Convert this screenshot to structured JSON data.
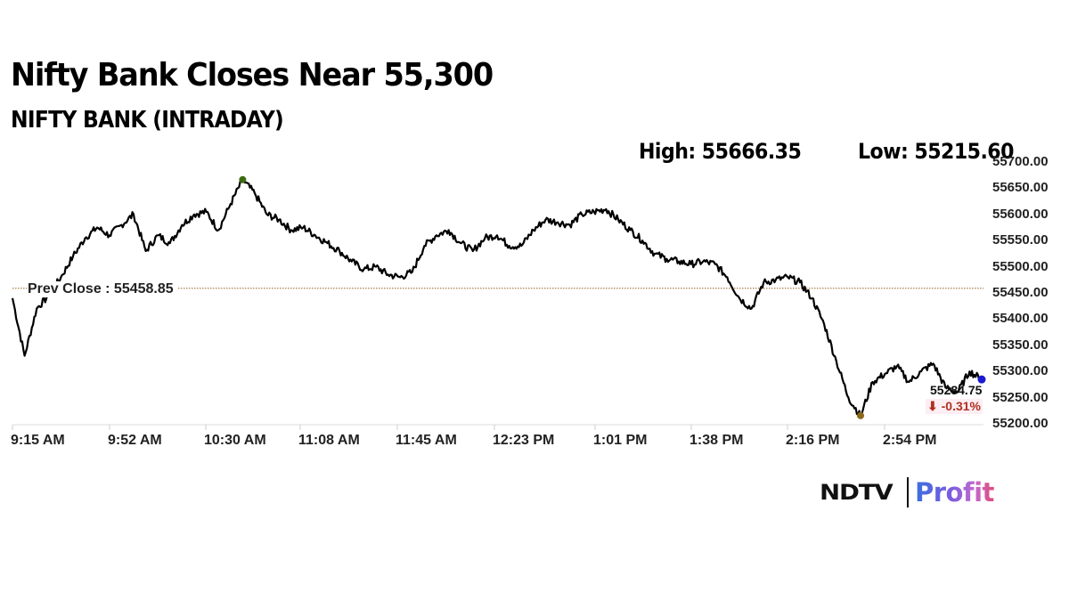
{
  "headline": "Nifty Bank Closes Near 55,300",
  "subtitle": "NIFTY BANK (INTRADAY)",
  "stats": {
    "high_label": "High: 55666.35",
    "low_label": "Low: 55215.60"
  },
  "prev_close_label": "Prev Close : 55458.85",
  "last_price": "55284.75",
  "change": "⬇ -0.31%",
  "logo": {
    "left": "NDTV",
    "right": "Profit"
  },
  "colors": {
    "line": "#000000",
    "prev_close_line": "#b8946a",
    "high_marker": "#3d6b12",
    "low_marker": "#8a6a1a",
    "last_marker": "#1a1ad0",
    "change_negative": "#b03020"
  },
  "chart_data": {
    "type": "line",
    "title": "NIFTY BANK (INTRADAY)",
    "xlabel": "",
    "ylabel": "",
    "x_ticks": [
      "9:15 AM",
      "9:52 AM",
      "10:30 AM",
      "11:08 AM",
      "11:45 AM",
      "12:23 PM",
      "1:01 PM",
      "1:38 PM",
      "2:16 PM",
      "2:54 PM"
    ],
    "y_ticks": [
      "55700.00",
      "55650.00",
      "55600.00",
      "55550.00",
      "55500.00",
      "55450.00",
      "55400.00",
      "55350.00",
      "55300.00",
      "55250.00",
      "55200.00"
    ],
    "ylim": [
      55200,
      55700
    ],
    "grid": false,
    "legend": null,
    "annotations": {
      "high": 55666.35,
      "low": 55215.6,
      "prev_close": 55458.85,
      "last": 55284.75,
      "change_pct": -0.31
    },
    "series": [
      {
        "name": "NIFTY BANK",
        "x": [
          "9:15 AM",
          "9:17 AM",
          "9:19 AM",
          "9:21 AM",
          "9:23 AM",
          "9:25 AM",
          "9:30 AM",
          "9:35 AM",
          "9:40 AM",
          "9:45 AM",
          "9:50 AM",
          "9:52 AM",
          "9:55 AM",
          "10:00 AM",
          "10:05 AM",
          "10:10 AM",
          "10:15 AM",
          "10:20 AM",
          "10:25 AM",
          "10:30 AM",
          "10:35 AM",
          "10:40 AM",
          "10:45 AM",
          "10:50 AM",
          "10:55 AM",
          "11:00 AM",
          "11:05 AM",
          "11:08 AM",
          "11:15 AM",
          "11:20 AM",
          "11:25 AM",
          "11:30 AM",
          "11:35 AM",
          "11:40 AM",
          "11:45 AM",
          "11:50 AM",
          "11:55 AM",
          "12:00 PM",
          "12:05 PM",
          "12:10 PM",
          "12:15 PM",
          "12:20 PM",
          "12:23 PM",
          "12:30 PM",
          "12:35 PM",
          "12:40 PM",
          "12:45 PM",
          "12:50 PM",
          "12:55 PM",
          "1:01 PM",
          "1:05 PM",
          "1:10 PM",
          "1:15 PM",
          "1:20 PM",
          "1:25 PM",
          "1:30 PM",
          "1:35 PM",
          "1:38 PM",
          "1:45 PM",
          "1:50 PM",
          "1:55 PM",
          "2:00 PM",
          "2:05 PM",
          "2:10 PM",
          "2:16 PM",
          "2:20 PM",
          "2:25 PM",
          "2:30 PM",
          "2:35 PM",
          "2:40 PM",
          "2:45 PM",
          "2:50 PM",
          "2:54 PM",
          "2:58 PM",
          "3:02 PM",
          "3:06 PM",
          "3:10 PM",
          "3:15 PM",
          "3:20 PM",
          "3:25 PM",
          "3:29 PM"
        ],
        "values": [
          55440,
          55330,
          55420,
          55445,
          55480,
          55520,
          55555,
          55575,
          55560,
          55580,
          55600,
          55530,
          55560,
          55545,
          55580,
          55600,
          55605,
          55570,
          55620,
          55666,
          55640,
          55600,
          55590,
          55570,
          55575,
          55560,
          55545,
          55530,
          55510,
          55495,
          55500,
          55485,
          55480,
          55490,
          55540,
          55560,
          55570,
          55545,
          55530,
          55555,
          55560,
          55540,
          55540,
          55570,
          55590,
          55585,
          55580,
          55600,
          55605,
          55610,
          55590,
          55570,
          55550,
          55525,
          55515,
          55510,
          55505,
          55510,
          55505,
          55480,
          55440,
          55420,
          55470,
          55475,
          55480,
          55470,
          55440,
          55390,
          55320,
          55250,
          55215,
          55280,
          55295,
          55310,
          55280,
          55300,
          55315,
          55270,
          55260,
          55300,
          55285
        ]
      }
    ]
  }
}
